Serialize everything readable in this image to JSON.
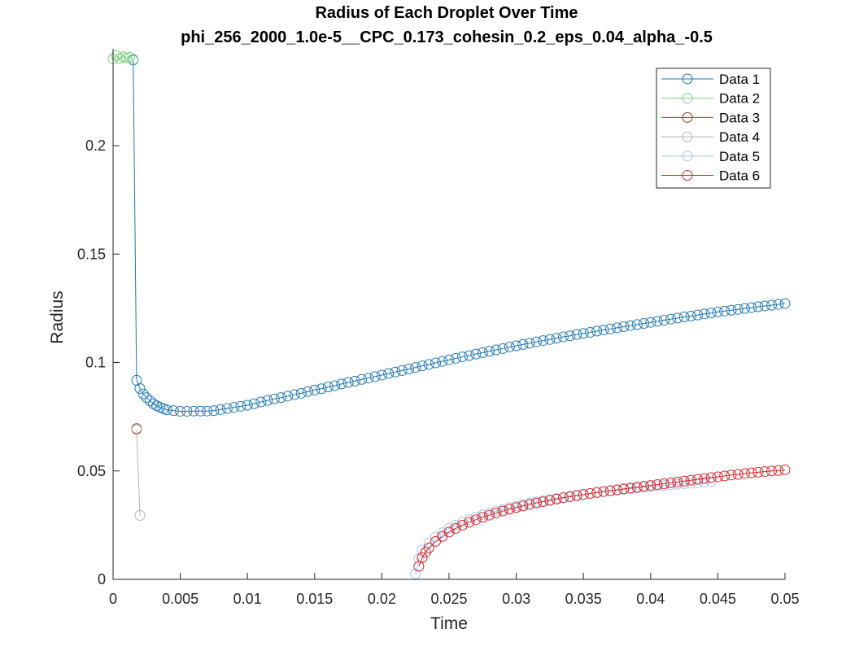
{
  "chart_data": {
    "type": "line",
    "title": "Radius of Each Droplet Over Time",
    "subtitle": "phi_256_2000_1.0e-5__CPC_0.173_cohesin_0.2_eps_0.04_alpha_-0.5",
    "xlabel": "Time",
    "ylabel": "Radius",
    "xlim": [
      0,
      0.05
    ],
    "ylim": [
      0,
      0.24
    ],
    "xticks": [
      0,
      0.005,
      0.01,
      0.015,
      0.02,
      0.025,
      0.03,
      0.035,
      0.04,
      0.045,
      0.05
    ],
    "xtick_labels": [
      "0",
      "0.005",
      "0.01",
      "0.015",
      "0.02",
      "0.025",
      "0.03",
      "0.035",
      "0.04",
      "0.045",
      "0.05"
    ],
    "yticks": [
      0,
      0.05,
      0.1,
      0.15,
      0.2
    ],
    "ytick_labels": [
      "0",
      "0.05",
      "0.1",
      "0.15",
      "0.2"
    ],
    "grid": false,
    "legend_position": "top-right",
    "marker": "circle",
    "series": [
      {
        "name": "Data 1",
        "color": "#1f77b4",
        "points": [
          [
            0.0015,
            0.2395
          ],
          [
            0.00175,
            0.0918
          ],
          [
            0.002,
            0.088
          ],
          [
            0.00225,
            0.0855
          ],
          [
            0.0025,
            0.0838
          ],
          [
            0.00275,
            0.0823
          ],
          [
            0.003,
            0.081
          ],
          [
            0.00325,
            0.08
          ],
          [
            0.0035,
            0.0793
          ],
          [
            0.00375,
            0.0787
          ],
          [
            0.004,
            0.0782
          ],
          [
            0.0045,
            0.0778
          ],
          [
            0.005,
            0.0775
          ],
          [
            0.0055,
            0.0775
          ],
          [
            0.006,
            0.0776
          ],
          [
            0.0065,
            0.0776
          ],
          [
            0.007,
            0.0776
          ],
          [
            0.0075,
            0.0778
          ],
          [
            0.008,
            0.0783
          ],
          [
            0.0085,
            0.0788
          ],
          [
            0.009,
            0.0793
          ],
          [
            0.0095,
            0.0798
          ],
          [
            0.01,
            0.0803
          ],
          [
            0.0105,
            0.081
          ],
          [
            0.011,
            0.0818
          ],
          [
            0.0115,
            0.0825
          ],
          [
            0.012,
            0.0832
          ],
          [
            0.0125,
            0.0838
          ],
          [
            0.013,
            0.0845
          ],
          [
            0.0135,
            0.0852
          ],
          [
            0.014,
            0.0858
          ],
          [
            0.0145,
            0.0866
          ],
          [
            0.015,
            0.0873
          ],
          [
            0.0155,
            0.0879
          ],
          [
            0.016,
            0.0887
          ],
          [
            0.0165,
            0.0893
          ],
          [
            0.017,
            0.0901
          ],
          [
            0.0175,
            0.0908
          ],
          [
            0.018,
            0.0914
          ],
          [
            0.0185,
            0.0922
          ],
          [
            0.019,
            0.0928
          ],
          [
            0.0195,
            0.0935
          ],
          [
            0.02,
            0.0942
          ],
          [
            0.0205,
            0.0949
          ],
          [
            0.021,
            0.0956
          ],
          [
            0.0215,
            0.0963
          ],
          [
            0.022,
            0.097
          ],
          [
            0.0225,
            0.0977
          ],
          [
            0.023,
            0.0984
          ],
          [
            0.0235,
            0.0991
          ],
          [
            0.024,
            0.0998
          ],
          [
            0.0245,
            0.1005
          ],
          [
            0.025,
            0.1012
          ],
          [
            0.0255,
            0.1019
          ],
          [
            0.026,
            0.1026
          ],
          [
            0.0265,
            0.1032
          ],
          [
            0.027,
            0.1039
          ],
          [
            0.0275,
            0.1045
          ],
          [
            0.028,
            0.1052
          ],
          [
            0.0285,
            0.1058
          ],
          [
            0.029,
            0.1064
          ],
          [
            0.0295,
            0.1071
          ],
          [
            0.03,
            0.1077
          ],
          [
            0.0305,
            0.1083
          ],
          [
            0.031,
            0.1089
          ],
          [
            0.0315,
            0.1095
          ],
          [
            0.032,
            0.1101
          ],
          [
            0.0325,
            0.1106
          ],
          [
            0.033,
            0.1112
          ],
          [
            0.0335,
            0.1118
          ],
          [
            0.034,
            0.1123
          ],
          [
            0.0345,
            0.1129
          ],
          [
            0.035,
            0.1134
          ],
          [
            0.0355,
            0.1139
          ],
          [
            0.036,
            0.1145
          ],
          [
            0.0365,
            0.115
          ],
          [
            0.037,
            0.1155
          ],
          [
            0.0375,
            0.116
          ],
          [
            0.038,
            0.1165
          ],
          [
            0.0385,
            0.117
          ],
          [
            0.039,
            0.1175
          ],
          [
            0.0395,
            0.118
          ],
          [
            0.04,
            0.1185
          ],
          [
            0.0405,
            0.119
          ],
          [
            0.041,
            0.1195
          ],
          [
            0.0415,
            0.12
          ],
          [
            0.042,
            0.1205
          ],
          [
            0.0425,
            0.121
          ],
          [
            0.043,
            0.1214
          ],
          [
            0.0435,
            0.1219
          ],
          [
            0.044,
            0.1224
          ],
          [
            0.0445,
            0.1228
          ],
          [
            0.045,
            0.1233
          ],
          [
            0.0455,
            0.1237
          ],
          [
            0.046,
            0.1241
          ],
          [
            0.0465,
            0.1245
          ],
          [
            0.047,
            0.1249
          ],
          [
            0.0475,
            0.1253
          ],
          [
            0.048,
            0.1257
          ],
          [
            0.0485,
            0.1261
          ],
          [
            0.049,
            0.1264
          ],
          [
            0.0495,
            0.1268
          ],
          [
            0.05,
            0.1272
          ]
        ]
      },
      {
        "name": "Data 2",
        "color": "#7ccd7c",
        "points": [
          [
            0.0,
            0.24
          ],
          [
            0.00025,
            0.2415
          ],
          [
            0.0005,
            0.2402
          ],
          [
            0.00075,
            0.241
          ],
          [
            0.001,
            0.2405
          ],
          [
            0.00125,
            0.2408
          ],
          [
            0.0015,
            0.2398
          ]
        ]
      },
      {
        "name": "Data 3",
        "color": "#8b3a2f",
        "points": [
          [
            0.00175,
            0.0695
          ]
        ]
      },
      {
        "name": "Data 4",
        "color": "#b4b4b4",
        "points": [
          [
            0.00175,
            0.069
          ],
          [
            0.002,
            0.0295
          ]
        ]
      },
      {
        "name": "Data 5",
        "color": "#a9c4e8",
        "points": [
          [
            0.0225,
            0.0025
          ],
          [
            0.02275,
            0.0095
          ],
          [
            0.023,
            0.0135
          ],
          [
            0.0235,
            0.0168
          ],
          [
            0.024,
            0.0195
          ],
          [
            0.0245,
            0.0215
          ],
          [
            0.025,
            0.0235
          ],
          [
            0.0255,
            0.025
          ],
          [
            0.026,
            0.0263
          ],
          [
            0.0265,
            0.0275
          ],
          [
            0.027,
            0.0287
          ],
          [
            0.0275,
            0.0297
          ],
          [
            0.028,
            0.0307
          ],
          [
            0.0285,
            0.0315
          ],
          [
            0.029,
            0.0323
          ],
          [
            0.0295,
            0.0331
          ],
          [
            0.03,
            0.0338
          ],
          [
            0.0305,
            0.0345
          ],
          [
            0.031,
            0.0351
          ],
          [
            0.0315,
            0.0357
          ],
          [
            0.032,
            0.0363
          ],
          [
            0.0325,
            0.0368
          ],
          [
            0.033,
            0.0373
          ],
          [
            0.0335,
            0.0378
          ],
          [
            0.034,
            0.0383
          ],
          [
            0.0345,
            0.0388
          ],
          [
            0.035,
            0.0392
          ],
          [
            0.0355,
            0.0396
          ],
          [
            0.036,
            0.04
          ],
          [
            0.0365,
            0.0404
          ],
          [
            0.037,
            0.0408
          ],
          [
            0.0375,
            0.0411
          ],
          [
            0.038,
            0.0415
          ],
          [
            0.0385,
            0.0418
          ],
          [
            0.039,
            0.0421
          ],
          [
            0.0395,
            0.0424
          ],
          [
            0.04,
            0.0427
          ],
          [
            0.0405,
            0.043
          ],
          [
            0.041,
            0.0433
          ],
          [
            0.0415,
            0.0436
          ],
          [
            0.042,
            0.0438
          ],
          [
            0.0425,
            0.0441
          ],
          [
            0.043,
            0.0443
          ],
          [
            0.0435,
            0.0446
          ],
          [
            0.044,
            0.0448
          ],
          [
            0.0445,
            0.045
          ]
        ]
      },
      {
        "name": "Data 6",
        "color": "#d62728",
        "points": [
          [
            0.02275,
            0.006
          ],
          [
            0.023,
            0.01
          ],
          [
            0.02325,
            0.0125
          ],
          [
            0.0235,
            0.0145
          ],
          [
            0.024,
            0.0175
          ],
          [
            0.0245,
            0.0198
          ],
          [
            0.025,
            0.0218
          ],
          [
            0.0255,
            0.0235
          ],
          [
            0.026,
            0.025
          ],
          [
            0.0265,
            0.0263
          ],
          [
            0.027,
            0.0275
          ],
          [
            0.0275,
            0.0286
          ],
          [
            0.028,
            0.0296
          ],
          [
            0.0285,
            0.0306
          ],
          [
            0.029,
            0.0315
          ],
          [
            0.0295,
            0.0323
          ],
          [
            0.03,
            0.0331
          ],
          [
            0.0305,
            0.0338
          ],
          [
            0.031,
            0.0345
          ],
          [
            0.0315,
            0.0352
          ],
          [
            0.032,
            0.0358
          ],
          [
            0.0325,
            0.0364
          ],
          [
            0.033,
            0.037
          ],
          [
            0.0335,
            0.0376
          ],
          [
            0.034,
            0.0381
          ],
          [
            0.0345,
            0.0386
          ],
          [
            0.035,
            0.0391
          ],
          [
            0.0355,
            0.0396
          ],
          [
            0.036,
            0.04
          ],
          [
            0.0365,
            0.0405
          ],
          [
            0.037,
            0.0409
          ],
          [
            0.0375,
            0.0413
          ],
          [
            0.038,
            0.0417
          ],
          [
            0.0385,
            0.0421
          ],
          [
            0.039,
            0.0425
          ],
          [
            0.0395,
            0.0429
          ],
          [
            0.04,
            0.0433
          ],
          [
            0.0405,
            0.0437
          ],
          [
            0.041,
            0.0441
          ],
          [
            0.0415,
            0.0445
          ],
          [
            0.042,
            0.0449
          ],
          [
            0.0425,
            0.0453
          ],
          [
            0.043,
            0.0457
          ],
          [
            0.0435,
            0.0461
          ],
          [
            0.044,
            0.0465
          ],
          [
            0.0445,
            0.0469
          ],
          [
            0.045,
            0.0473
          ],
          [
            0.0455,
            0.0477
          ],
          [
            0.046,
            0.0481
          ],
          [
            0.0465,
            0.0484
          ],
          [
            0.047,
            0.0488
          ],
          [
            0.0475,
            0.0491
          ],
          [
            0.048,
            0.0494
          ],
          [
            0.0485,
            0.0497
          ],
          [
            0.049,
            0.05
          ],
          [
            0.0495,
            0.0502
          ],
          [
            0.05,
            0.0505
          ]
        ]
      }
    ]
  }
}
